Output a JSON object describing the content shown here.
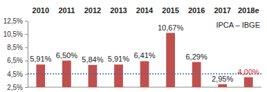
{
  "chart_data": {
    "type": "bar",
    "categories": [
      "2010",
      "2011",
      "2012",
      "2013",
      "2014",
      "2015",
      "2016",
      "2017",
      "2018e"
    ],
    "values": [
      5.91,
      6.5,
      5.84,
      5.91,
      6.41,
      10.67,
      6.29,
      2.95,
      4.0
    ],
    "value_labels": [
      "5,91%",
      "6,50%",
      "5,84%",
      "5,91%",
      "6,41%",
      "10,67%",
      "6,29%",
      "2,95%",
      "4,00%"
    ],
    "color": "#c0504d",
    "data_labels": true,
    "annotation": "IPCA – IBGE",
    "reference_line": 4.5,
    "ylim": [
      2.5,
      12.5
    ],
    "yticks": [
      {
        "value": 2.5,
        "label": "2,5%"
      },
      {
        "value": 4.5,
        "label": "4,5%"
      },
      {
        "value": 6.5,
        "label": "6,5%"
      },
      {
        "value": 8.5,
        "label": "8,5%"
      },
      {
        "value": 10.5,
        "label": "10,5%"
      },
      {
        "value": 12.5,
        "label": "12,5%"
      }
    ],
    "grid": false
  }
}
